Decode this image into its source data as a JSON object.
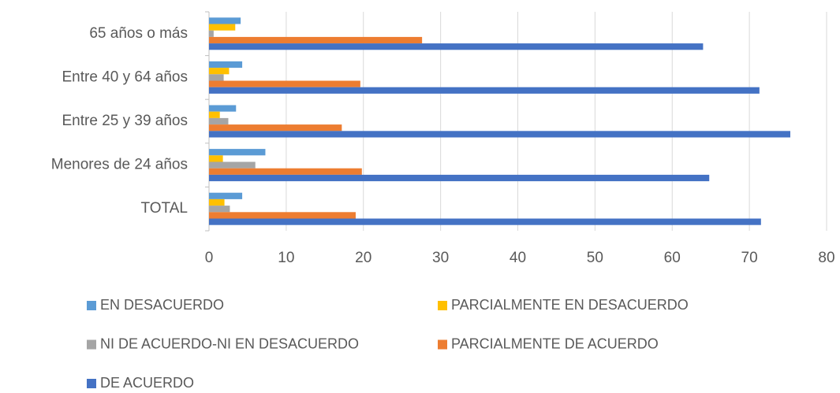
{
  "chart_data": {
    "type": "bar",
    "orientation": "horizontal",
    "categories": [
      "65 años o más",
      "Entre 40 y 64 años",
      "Entre 25 y 39 años",
      "Menores de 24 años",
      "TOTAL"
    ],
    "series": [
      {
        "name": "EN DESACUERDO",
        "color": "#5B9BD5",
        "values": [
          4.1,
          4.3,
          3.5,
          7.3,
          4.3
        ]
      },
      {
        "name": "PARCIALMENTE EN DESACUERDO",
        "color": "#FFC000",
        "values": [
          3.4,
          2.6,
          1.4,
          1.8,
          2.0
        ]
      },
      {
        "name": "NI DE ACUERDO-NI EN DESACUERDO",
        "color": "#A5A5A5",
        "values": [
          0.6,
          1.9,
          2.5,
          6.0,
          2.7
        ]
      },
      {
        "name": "PARCIALMENTE DE ACUERDO",
        "color": "#ED7D31",
        "values": [
          27.6,
          19.6,
          17.2,
          19.8,
          19.0
        ]
      },
      {
        "name": "DE ACUERDO",
        "color": "#4472C4",
        "values": [
          64.0,
          71.3,
          75.3,
          64.8,
          71.5
        ]
      }
    ],
    "xlim": [
      0,
      80
    ],
    "xticks": [
      0,
      10,
      20,
      30,
      40,
      50,
      60,
      70,
      80
    ],
    "grid": true,
    "legend": "bottom"
  }
}
